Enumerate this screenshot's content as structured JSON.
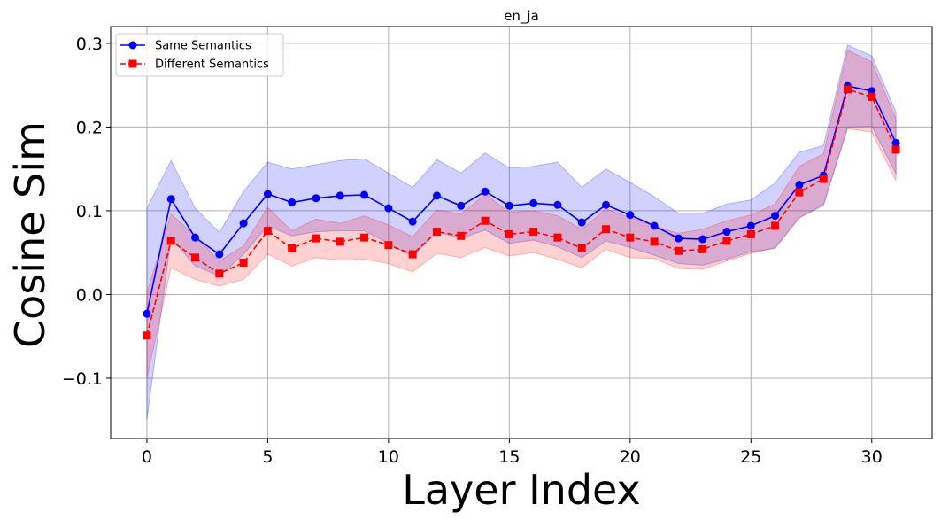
{
  "chart_data": {
    "type": "line",
    "title": "en_ja",
    "xlabel": "Layer Index",
    "ylabel": "Cosine Sim",
    "xlim": [
      -1.5,
      32.5
    ],
    "ylim": [
      -0.172,
      0.32
    ],
    "xticks": [
      0,
      5,
      10,
      15,
      20,
      25,
      30
    ],
    "yticks": [
      -0.1,
      0.0,
      0.1,
      0.2,
      0.3
    ],
    "ytick_labels": [
      "−0.1",
      "0.0",
      "0.1",
      "0.2",
      "0.3"
    ],
    "grid": true,
    "legend_position": "upper left",
    "x": [
      0,
      1,
      2,
      3,
      4,
      5,
      6,
      7,
      8,
      9,
      10,
      11,
      12,
      13,
      14,
      15,
      16,
      17,
      18,
      19,
      20,
      21,
      22,
      23,
      24,
      25,
      26,
      27,
      28,
      29,
      30,
      31
    ],
    "series": [
      {
        "name": "Same Semantics",
        "color": "#0000ff",
        "marker": "circle",
        "linestyle": "solid",
        "values": [
          -0.023,
          0.114,
          0.068,
          0.048,
          0.085,
          0.12,
          0.11,
          0.115,
          0.118,
          0.119,
          0.103,
          0.087,
          0.118,
          0.106,
          0.123,
          0.106,
          0.109,
          0.107,
          0.086,
          0.107,
          0.095,
          0.082,
          0.067,
          0.066,
          0.075,
          0.082,
          0.094,
          0.131,
          0.142,
          0.249,
          0.243,
          0.181
        ],
        "upper": [
          0.103,
          0.16,
          0.103,
          0.074,
          0.123,
          0.158,
          0.15,
          0.155,
          0.16,
          0.162,
          0.145,
          0.128,
          0.161,
          0.145,
          0.169,
          0.151,
          0.153,
          0.158,
          0.128,
          0.15,
          0.134,
          0.117,
          0.097,
          0.097,
          0.108,
          0.113,
          0.133,
          0.17,
          0.178,
          0.298,
          0.285,
          0.218
        ],
        "lower": [
          -0.15,
          0.068,
          0.034,
          0.022,
          0.048,
          0.082,
          0.07,
          0.075,
          0.076,
          0.076,
          0.061,
          0.045,
          0.075,
          0.067,
          0.077,
          0.061,
          0.065,
          0.057,
          0.044,
          0.064,
          0.056,
          0.047,
          0.037,
          0.035,
          0.042,
          0.051,
          0.055,
          0.092,
          0.106,
          0.2,
          0.201,
          0.144
        ]
      },
      {
        "name": "Different Semantics",
        "color": "#ff0000",
        "marker": "square",
        "linestyle": "dashed",
        "values": [
          -0.049,
          0.064,
          0.044,
          0.025,
          0.038,
          0.076,
          0.055,
          0.067,
          0.063,
          0.068,
          0.059,
          0.048,
          0.075,
          0.07,
          0.088,
          0.072,
          0.075,
          0.068,
          0.055,
          0.078,
          0.068,
          0.063,
          0.052,
          0.054,
          0.064,
          0.072,
          0.082,
          0.122,
          0.138,
          0.245,
          0.236,
          0.173
        ],
        "upper": [
          0.002,
          0.096,
          0.07,
          0.04,
          0.058,
          0.104,
          0.076,
          0.09,
          0.085,
          0.094,
          0.083,
          0.069,
          0.101,
          0.096,
          0.12,
          0.098,
          0.1,
          0.094,
          0.078,
          0.102,
          0.092,
          0.082,
          0.073,
          0.078,
          0.088,
          0.095,
          0.108,
          0.153,
          0.168,
          0.292,
          0.278,
          0.21
        ],
        "lower": [
          -0.1,
          0.032,
          0.018,
          0.01,
          0.018,
          0.048,
          0.034,
          0.044,
          0.041,
          0.042,
          0.037,
          0.027,
          0.049,
          0.044,
          0.056,
          0.046,
          0.05,
          0.042,
          0.032,
          0.054,
          0.044,
          0.043,
          0.031,
          0.03,
          0.04,
          0.049,
          0.056,
          0.091,
          0.108,
          0.198,
          0.194,
          0.136
        ]
      }
    ]
  }
}
